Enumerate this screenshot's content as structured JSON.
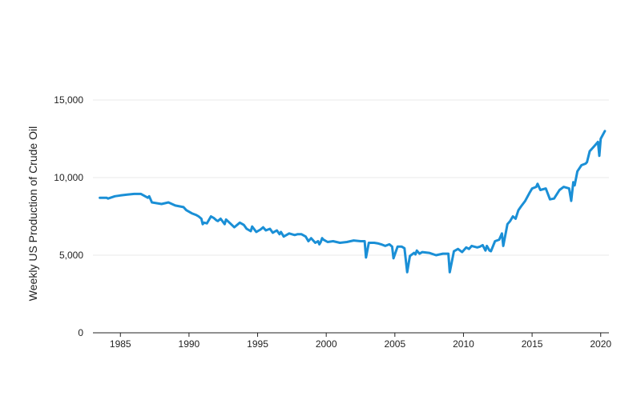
{
  "chart_data": {
    "type": "line",
    "title": "",
    "xlabel": "",
    "ylabel": "Weekly US Production of Crude Oil",
    "xlim": [
      1983.0,
      2020.6
    ],
    "ylim": [
      0,
      15000
    ],
    "grid": true,
    "legend": "none",
    "x_ticks": [
      {
        "value": 1985,
        "label": "1985"
      },
      {
        "value": 1990,
        "label": "1990"
      },
      {
        "value": 1995,
        "label": "1995"
      },
      {
        "value": 2000,
        "label": "2000"
      },
      {
        "value": 2005,
        "label": "2005"
      },
      {
        "value": 2010,
        "label": "2010"
      },
      {
        "value": 2015,
        "label": "2015"
      },
      {
        "value": 2020,
        "label": "2020"
      }
    ],
    "y_ticks": [
      {
        "value": 0,
        "label": "0"
      },
      {
        "value": 5000,
        "label": "5,000"
      },
      {
        "value": 10000,
        "label": "10,000"
      },
      {
        "value": 15000,
        "label": "15,000"
      }
    ],
    "colors": {
      "line": "#1a8fd6",
      "grid": "#e8e8e8",
      "axis": "#222222"
    },
    "series": [
      {
        "x": [
          1983.5,
          1984.0,
          1984.1,
          1984.6,
          1985.0,
          1985.5,
          1986.0,
          1986.5,
          1987.0,
          1987.1,
          1987.3,
          1988.0,
          1988.5,
          1989.0,
          1989.6,
          1989.8,
          1990.2,
          1990.5,
          1990.7,
          1990.9,
          1991.0,
          1991.1,
          1991.3,
          1991.6,
          1991.8,
          1992.0,
          1992.1,
          1992.3,
          1992.6,
          1992.7,
          1993.0,
          1993.3,
          1993.7,
          1994.0,
          1994.2,
          1994.5,
          1994.6,
          1994.9,
          1995.2,
          1995.4,
          1995.6,
          1995.9,
          1996.1,
          1996.4,
          1996.6,
          1996.7,
          1996.9,
          1997.3,
          1997.7,
          1997.9,
          1998.2,
          1998.5,
          1998.7,
          1998.9,
          1999.2,
          1999.4,
          1999.5,
          1999.6,
          1999.7,
          1999.8,
          2000.1,
          2000.5,
          2001.0,
          2001.5,
          2002.0,
          2002.5,
          2002.8,
          2002.9,
          2003.1,
          2003.5,
          2003.8,
          2004.0,
          2004.3,
          2004.6,
          2004.8,
          2004.9,
          2005.2,
          2005.5,
          2005.7,
          2005.9,
          2006.1,
          2006.4,
          2006.5,
          2006.6,
          2006.8,
          2007.0,
          2007.5,
          2008.0,
          2008.5,
          2008.7,
          2008.9,
          2009.0,
          2009.3,
          2009.6,
          2009.9,
          2010.2,
          2010.4,
          2010.6,
          2011.0,
          2011.2,
          2011.4,
          2011.6,
          2011.7,
          2011.9,
          2012.0,
          2012.3,
          2012.6,
          2012.8,
          2012.9,
          2013.2,
          2013.4,
          2013.6,
          2013.8,
          2014.0,
          2014.2,
          2014.5,
          2014.8,
          2015.0,
          2015.3,
          2015.4,
          2015.6,
          2016.0,
          2016.3,
          2016.6,
          2017.0,
          2017.3,
          2017.7,
          2017.85,
          2018.0,
          2018.1,
          2018.3,
          2018.6,
          2018.9,
          2019.0,
          2019.2,
          2019.5,
          2019.8,
          2019.9,
          2020.0,
          2020.3
        ],
        "y": [
          8700,
          8700,
          8650,
          8800,
          8850,
          8900,
          8950,
          8950,
          8700,
          8800,
          8400,
          8300,
          8400,
          8200,
          8100,
          7900,
          7700,
          7600,
          7500,
          7350,
          7000,
          7100,
          7050,
          7500,
          7400,
          7250,
          7200,
          7350,
          7000,
          7300,
          7050,
          6800,
          7100,
          6950,
          6700,
          6550,
          6850,
          6500,
          6650,
          6800,
          6600,
          6700,
          6450,
          6600,
          6350,
          6500,
          6200,
          6400,
          6300,
          6350,
          6350,
          6200,
          5900,
          6100,
          5800,
          5900,
          5700,
          5850,
          6100,
          6000,
          5850,
          5900,
          5800,
          5850,
          5950,
          5900,
          5900,
          4850,
          5800,
          5800,
          5750,
          5700,
          5600,
          5700,
          5550,
          4800,
          5550,
          5550,
          5450,
          3900,
          4950,
          5150,
          5050,
          5300,
          5100,
          5200,
          5150,
          5000,
          5100,
          5100,
          5100,
          3900,
          5250,
          5400,
          5200,
          5500,
          5400,
          5600,
          5500,
          5550,
          5650,
          5300,
          5600,
          5300,
          5250,
          5900,
          6000,
          6400,
          5600,
          7000,
          7200,
          7500,
          7350,
          7900,
          8150,
          8500,
          9000,
          9300,
          9400,
          9600,
          9200,
          9300,
          8600,
          8650,
          9200,
          9400,
          9300,
          8500,
          9700,
          9500,
          10400,
          10800,
          10900,
          11000,
          11700,
          12000,
          12300,
          11400,
          12500,
          13000
        ]
      }
    ]
  }
}
